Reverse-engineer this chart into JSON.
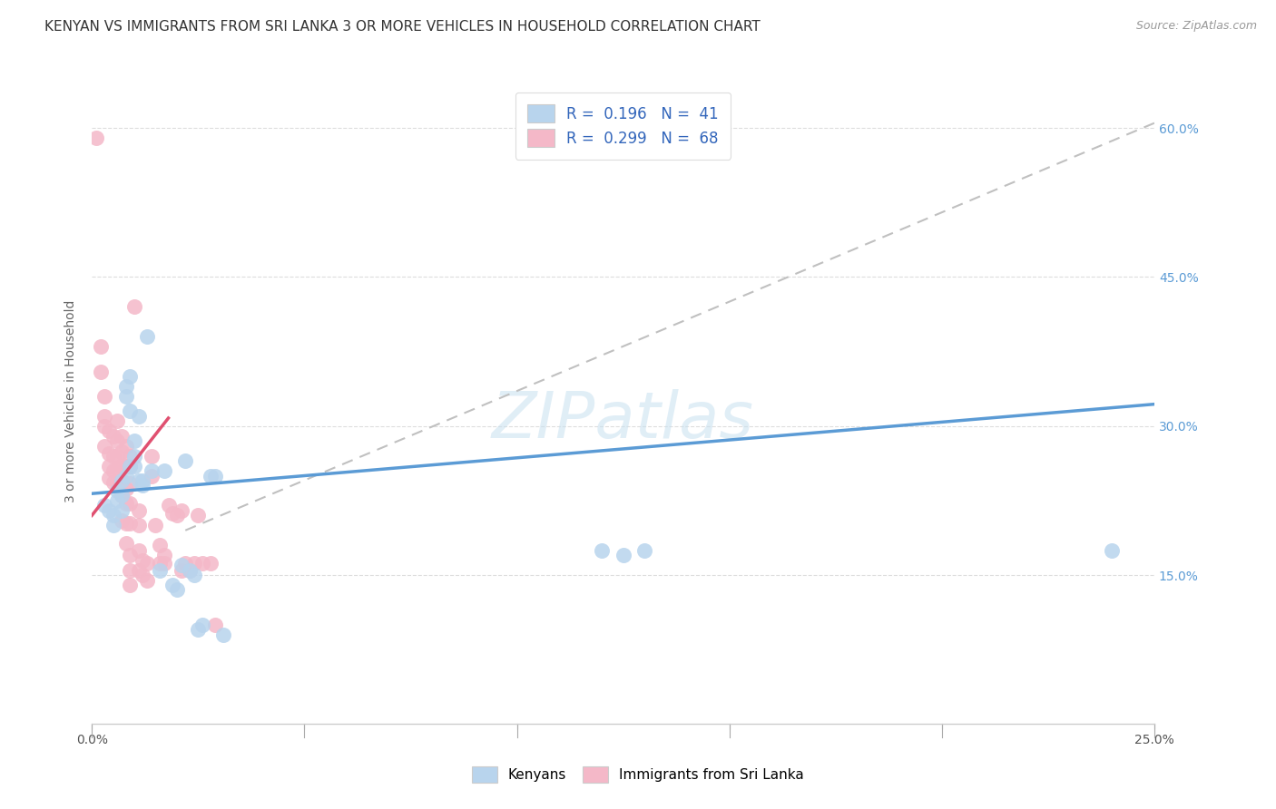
{
  "title": "KENYAN VS IMMIGRANTS FROM SRI LANKA 3 OR MORE VEHICLES IN HOUSEHOLD CORRELATION CHART",
  "source": "Source: ZipAtlas.com",
  "ylabel": "3 or more Vehicles in Household",
  "xlim": [
    0.0,
    0.25
  ],
  "ylim": [
    0.0,
    0.65
  ],
  "xticks": [
    0.0,
    0.05,
    0.1,
    0.15,
    0.2,
    0.25
  ],
  "xticklabels": [
    "0.0%",
    "",
    "",
    "",
    "",
    "25.0%"
  ],
  "yticks": [
    0.15,
    0.3,
    0.45,
    0.6
  ],
  "yticklabels": [
    "15.0%",
    "30.0%",
    "45.0%",
    "60.0%"
  ],
  "legend_entries": [
    {
      "label": "R =  0.196   N =  41",
      "color": "#b8d4ed"
    },
    {
      "label": "R =  0.299   N =  68",
      "color": "#f4b8c8"
    }
  ],
  "watermark": "ZIPatlas",
  "kenyan_color": "#b8d4ed",
  "srilanka_color": "#f4b8c8",
  "kenyan_scatter": [
    [
      0.003,
      0.22
    ],
    [
      0.004,
      0.215
    ],
    [
      0.005,
      0.21
    ],
    [
      0.005,
      0.2
    ],
    [
      0.006,
      0.235
    ],
    [
      0.006,
      0.225
    ],
    [
      0.007,
      0.23
    ],
    [
      0.007,
      0.215
    ],
    [
      0.007,
      0.245
    ],
    [
      0.008,
      0.34
    ],
    [
      0.008,
      0.33
    ],
    [
      0.008,
      0.25
    ],
    [
      0.009,
      0.35
    ],
    [
      0.009,
      0.26
    ],
    [
      0.009,
      0.315
    ],
    [
      0.01,
      0.285
    ],
    [
      0.01,
      0.27
    ],
    [
      0.01,
      0.26
    ],
    [
      0.011,
      0.31
    ],
    [
      0.011,
      0.245
    ],
    [
      0.012,
      0.245
    ],
    [
      0.012,
      0.24
    ],
    [
      0.013,
      0.39
    ],
    [
      0.014,
      0.255
    ],
    [
      0.016,
      0.155
    ],
    [
      0.017,
      0.255
    ],
    [
      0.019,
      0.14
    ],
    [
      0.02,
      0.135
    ],
    [
      0.021,
      0.16
    ],
    [
      0.022,
      0.265
    ],
    [
      0.023,
      0.155
    ],
    [
      0.024,
      0.15
    ],
    [
      0.025,
      0.095
    ],
    [
      0.026,
      0.1
    ],
    [
      0.028,
      0.25
    ],
    [
      0.029,
      0.25
    ],
    [
      0.031,
      0.09
    ],
    [
      0.12,
      0.175
    ],
    [
      0.125,
      0.17
    ],
    [
      0.13,
      0.175
    ],
    [
      0.24,
      0.175
    ]
  ],
  "srilanka_scatter": [
    [
      0.001,
      0.59
    ],
    [
      0.002,
      0.38
    ],
    [
      0.002,
      0.355
    ],
    [
      0.003,
      0.33
    ],
    [
      0.003,
      0.31
    ],
    [
      0.003,
      0.3
    ],
    [
      0.003,
      0.28
    ],
    [
      0.004,
      0.295
    ],
    [
      0.004,
      0.272
    ],
    [
      0.004,
      0.26
    ],
    [
      0.004,
      0.248
    ],
    [
      0.005,
      0.29
    ],
    [
      0.005,
      0.27
    ],
    [
      0.005,
      0.255
    ],
    [
      0.005,
      0.243
    ],
    [
      0.006,
      0.305
    ],
    [
      0.006,
      0.285
    ],
    [
      0.006,
      0.27
    ],
    [
      0.006,
      0.258
    ],
    [
      0.006,
      0.243
    ],
    [
      0.007,
      0.29
    ],
    [
      0.007,
      0.274
    ],
    [
      0.007,
      0.26
    ],
    [
      0.007,
      0.245
    ],
    [
      0.007,
      0.23
    ],
    [
      0.007,
      0.205
    ],
    [
      0.008,
      0.28
    ],
    [
      0.008,
      0.26
    ],
    [
      0.008,
      0.237
    ],
    [
      0.008,
      0.222
    ],
    [
      0.008,
      0.202
    ],
    [
      0.008,
      0.182
    ],
    [
      0.009,
      0.27
    ],
    [
      0.009,
      0.26
    ],
    [
      0.009,
      0.242
    ],
    [
      0.009,
      0.222
    ],
    [
      0.009,
      0.202
    ],
    [
      0.009,
      0.17
    ],
    [
      0.009,
      0.155
    ],
    [
      0.009,
      0.14
    ],
    [
      0.01,
      0.42
    ],
    [
      0.011,
      0.215
    ],
    [
      0.011,
      0.2
    ],
    [
      0.011,
      0.175
    ],
    [
      0.011,
      0.155
    ],
    [
      0.012,
      0.165
    ],
    [
      0.012,
      0.15
    ],
    [
      0.013,
      0.145
    ],
    [
      0.013,
      0.162
    ],
    [
      0.014,
      0.27
    ],
    [
      0.014,
      0.25
    ],
    [
      0.015,
      0.2
    ],
    [
      0.016,
      0.18
    ],
    [
      0.016,
      0.162
    ],
    [
      0.017,
      0.17
    ],
    [
      0.017,
      0.162
    ],
    [
      0.018,
      0.22
    ],
    [
      0.019,
      0.212
    ],
    [
      0.02,
      0.21
    ],
    [
      0.021,
      0.215
    ],
    [
      0.021,
      0.155
    ],
    [
      0.022,
      0.162
    ],
    [
      0.023,
      0.155
    ],
    [
      0.024,
      0.162
    ],
    [
      0.025,
      0.21
    ],
    [
      0.026,
      0.162
    ],
    [
      0.028,
      0.162
    ],
    [
      0.029,
      0.1
    ]
  ],
  "kenyan_line_x": [
    0.0,
    0.25
  ],
  "kenyan_line_y": [
    0.232,
    0.322
  ],
  "srilanka_line_x": [
    0.0,
    0.018
  ],
  "srilanka_line_y": [
    0.21,
    0.308
  ],
  "diagonal_line_x": [
    0.022,
    0.25
  ],
  "diagonal_line_y": [
    0.195,
    0.605
  ],
  "title_fontsize": 11,
  "axis_label_fontsize": 10,
  "tick_fontsize": 10,
  "source_fontsize": 9
}
